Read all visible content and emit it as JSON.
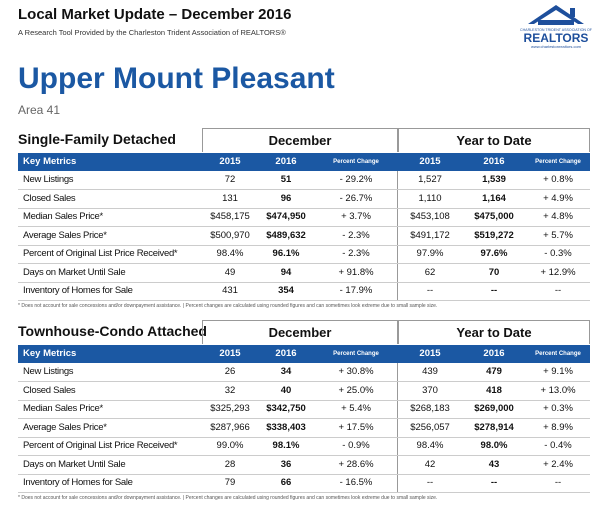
{
  "header": {
    "title": "Local Market Update – December 2016",
    "subtitle": "A Research Tool Provided by the Charleston Trident Association of REALTORS®",
    "logo": {
      "line1": "CHARLESTON TRIDENT ASSOCIATION OF",
      "line2": "REALTORS",
      "url": "www.charlestonrealtors.com"
    }
  },
  "area": {
    "name": "Upper Mount Pleasant",
    "code": "Area 41"
  },
  "tables": [
    {
      "title": "Single-Family Detached",
      "periods": [
        "December",
        "Year to Date"
      ],
      "columns": [
        "Key Metrics",
        "2015",
        "2016",
        "Percent Change",
        "2015",
        "2016",
        "Percent Change"
      ],
      "rows": [
        [
          "New Listings",
          "72",
          "51",
          "- 29.2%",
          "1,527",
          "1,539",
          "+ 0.8%"
        ],
        [
          "Closed Sales",
          "131",
          "96",
          "- 26.7%",
          "1,110",
          "1,164",
          "+ 4.9%"
        ],
        [
          "Median Sales Price*",
          "$458,175",
          "$474,950",
          "+ 3.7%",
          "$453,108",
          "$475,000",
          "+ 4.8%"
        ],
        [
          "Average Sales Price*",
          "$500,970",
          "$489,632",
          "- 2.3%",
          "$491,172",
          "$519,272",
          "+ 5.7%"
        ],
        [
          "Percent of Original List Price Received*",
          "98.4%",
          "96.1%",
          "- 2.3%",
          "97.9%",
          "97.6%",
          "- 0.3%"
        ],
        [
          "Days on Market Until Sale",
          "49",
          "94",
          "+ 91.8%",
          "62",
          "70",
          "+ 12.9%"
        ],
        [
          "Inventory of Homes for Sale",
          "431",
          "354",
          "- 17.9%",
          "--",
          "--",
          "--"
        ]
      ],
      "footnote": "* Does not account for sale concessions and/or downpayment assistance.  |  Percent changes are calculated using rounded figures and can sometimes look extreme due to small sample size."
    },
    {
      "title": "Townhouse-Condo Attached",
      "periods": [
        "December",
        "Year to Date"
      ],
      "columns": [
        "Key Metrics",
        "2015",
        "2016",
        "Percent Change",
        "2015",
        "2016",
        "Percent Change"
      ],
      "rows": [
        [
          "New Listings",
          "26",
          "34",
          "+ 30.8%",
          "439",
          "479",
          "+ 9.1%"
        ],
        [
          "Closed Sales",
          "32",
          "40",
          "+ 25.0%",
          "370",
          "418",
          "+ 13.0%"
        ],
        [
          "Median Sales Price*",
          "$325,293",
          "$342,750",
          "+ 5.4%",
          "$268,183",
          "$269,000",
          "+ 0.3%"
        ],
        [
          "Average Sales Price*",
          "$287,966",
          "$338,403",
          "+ 17.5%",
          "$256,057",
          "$278,914",
          "+ 8.9%"
        ],
        [
          "Percent of Original List Price Received*",
          "99.0%",
          "98.1%",
          "- 0.9%",
          "98.4%",
          "98.0%",
          "- 0.4%"
        ],
        [
          "Days on Market Until Sale",
          "28",
          "36",
          "+ 28.6%",
          "42",
          "43",
          "+ 2.4%"
        ],
        [
          "Inventory of Homes for Sale",
          "79",
          "66",
          "- 16.5%",
          "--",
          "--",
          "--"
        ]
      ],
      "footnote": "* Does not account for sale concessions and/or downpayment assistance.  |  Percent changes are calculated using rounded figures and can sometimes look extreme due to small sample size."
    }
  ]
}
